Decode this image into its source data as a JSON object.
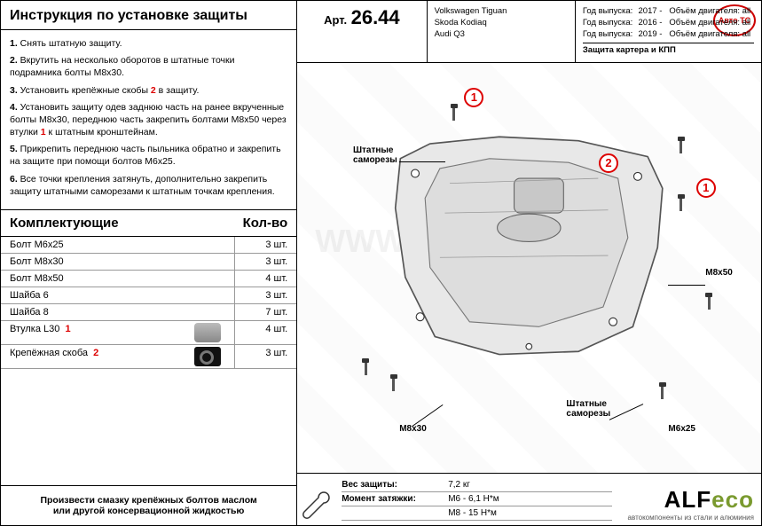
{
  "colors": {
    "accent_red": "#d00000",
    "logo_green": "#7a9a2f",
    "border": "#000000",
    "grid": "#999999"
  },
  "left": {
    "title": "Инструкция по установке защиты",
    "steps": [
      "1. Снять штатную защиту.",
      "2. Вкрутить на несколько оборотов в штатные точки подрамника болты М8х30.",
      "3. Установить крепёжные скобы <r>2</r> в защиту.",
      "4. Установить защиту одев заднюю часть на ранее вкрученные болты М8х30, переднюю часть закрепить болтами М8х50 через втулки <r>1</r> к штатным кронштейнам.",
      "5. Прикрепить переднюю часть пыльника обратно и закрепить на защите при помощи болтов М6х25.",
      "6. Все точки крепления затянуть, дополнительно закрепить защиту штатными саморезами к штатным точкам крепления."
    ],
    "comp_title": "Комплектующие",
    "comp_qty": "Кол-во",
    "components": [
      {
        "name": "Болт М6х25",
        "qty": "3 шт."
      },
      {
        "name": "Болт М8х30",
        "qty": "3 шт."
      },
      {
        "name": "Болт М8х50",
        "qty": "4 шт."
      },
      {
        "name": "Шайба 6",
        "qty": "3 шт."
      },
      {
        "name": "Шайба 8",
        "qty": "7 шт."
      },
      {
        "name": "Втулка L30",
        "mark": "1",
        "qty": "4 шт.",
        "img": "bushing"
      },
      {
        "name": "Крепёжная скоба",
        "mark": "2",
        "qty": "3 шт.",
        "img": "bracket"
      }
    ],
    "note1": "Произвести смазку крепёжных болтов маслом",
    "note2": "или другой консервационной жидкостью"
  },
  "right": {
    "art_label": "Арт.",
    "art_num": "26.44",
    "vehicles": [
      "Volkswagen Tiguan",
      "Skoda Kodiaq",
      "Audi Q3"
    ],
    "years": [
      {
        "k": "Год выпуска:",
        "v": "2017 -"
      },
      {
        "k": "Год выпуска:",
        "v": "2016 -"
      },
      {
        "k": "Год выпуска:",
        "v": "2019 -"
      }
    ],
    "engines": [
      {
        "k": "Объём двигателя:",
        "v": "all"
      },
      {
        "k": "Объём двигателя:",
        "v": "all"
      },
      {
        "k": "Объём двигателя:",
        "v": "all"
      }
    ],
    "protection": "Защита картера и КПП",
    "watermark": "WWW.AUTOTC.RU",
    "labels": {
      "screws1": "Штатные\nсаморезы",
      "screws2": "Штатные\nсаморезы",
      "m8x30": "М8х30",
      "m8x50": "М8х50",
      "m6x25": "М6х25"
    },
    "callouts": {
      "c1a": "1",
      "c2": "2",
      "c1b": "1"
    },
    "spec": {
      "weight_k": "Вес защиты:",
      "weight_v": "7,2 кг",
      "torque_k": "Момент затяжки:",
      "torque_v1": "М6 - 6,1 Н*м",
      "torque_v2": "М8 - 15 Н*м"
    },
    "logo": {
      "brand_a": "ALF",
      "brand_b": "eco",
      "sub": "автокомпоненты из стали и алюминия"
    },
    "tc": "Авто TC"
  }
}
